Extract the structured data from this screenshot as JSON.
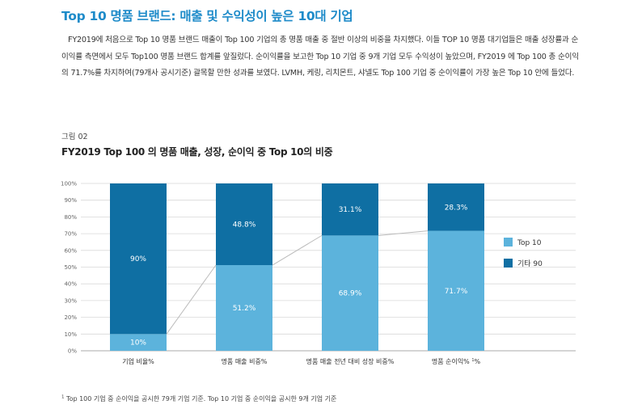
{
  "heading": "Top 10 명품 브랜드: 매출 및 수익성이 높은 10대 기업",
  "paragraph": "FY2019에 처음으로 Top 10 명품 브랜드 매출이 Top 100 기업의 총 명품 매출 중 절반 이상의 비중을 차지했다. 이들 TOP 10 명품 대기업들은 매출 성장률과 순이익률 측면에서 모두 Top100 명품 브랜드 합계를 앞질렀다. 순이익률을 보고한 Top 10 기업 중 9개 기업 모두 수익성이 높았으며, FY2019 에 Top 100 총 순이익의 71.7%를 차지하여(79개사 공시기준) 괄목할 만한 성과를 보였다. LVMH, 케링, 리치몬트, 샤넬도 Top 100 기업 중 순이익률이 가장 높은 Top 10 안에 들었다.",
  "figure_label": "그림 02",
  "figure_title": "FY2019 Top 100 의 명품 매출, 성장, 순이익 중 Top 10의 비중",
  "footnote": "Top 100 기업 중 순이익을 공시한 79개 기업 기준.  Top 10 기업 중 순이익을 공시한 9개 기업 기준",
  "footnote_marker": "1",
  "chart_data": {
    "type": "bar",
    "stacked": true,
    "categories": [
      "기업 비율%",
      "명품 매출 비중%",
      "명품 매출 전년 대비 성장 비중%",
      "명품 순이익% "
    ],
    "category_sup": [
      "",
      "",
      "",
      "1"
    ],
    "series": [
      {
        "name": "Top 10",
        "color": "#5cb3dc",
        "values": [
          10,
          51.2,
          68.9,
          71.7
        ],
        "labels": [
          "10%",
          "51.2%",
          "68.9%",
          "71.7%"
        ]
      },
      {
        "name": "기타 90",
        "color": "#0f6fa3",
        "values": [
          90,
          48.8,
          31.1,
          28.3
        ],
        "labels": [
          "90%",
          "48.8%",
          "31.1%",
          "28.3%"
        ]
      }
    ],
    "ylim": [
      0,
      100
    ],
    "yticks": [
      "0%",
      "10%",
      "20%",
      "30%",
      "40%",
      "50%",
      "60%",
      "70%",
      "80%",
      "90%",
      "100%"
    ],
    "grid": true,
    "connector_line": true,
    "legend_position": "right"
  }
}
